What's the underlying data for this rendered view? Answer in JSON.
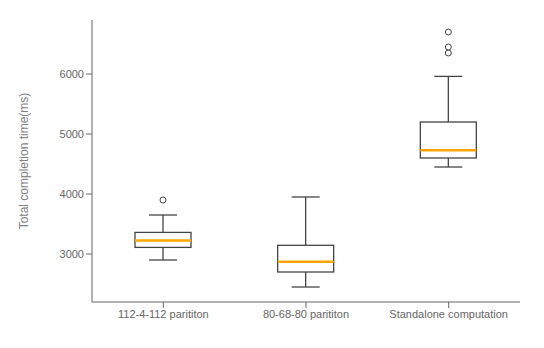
{
  "chart_data": {
    "type": "box",
    "ylabel": "Total completion time(ms)",
    "categories": [
      "112-4-112 parititon",
      "80-68-80 parititon",
      "Standalone computation"
    ],
    "q1": [
      3110,
      2700,
      4600
    ],
    "median": [
      3225,
      2870,
      4730
    ],
    "q3": [
      3360,
      3145,
      5200
    ],
    "whisker_low": [
      2900,
      2450,
      4450
    ],
    "whisker_high": [
      3650,
      3950,
      5960
    ],
    "fliers": [
      [
        3900
      ],
      [],
      [
        6350,
        6450,
        6700
      ]
    ],
    "color": "#FFA500",
    "ylim": [
      2200,
      6900
    ],
    "yticks": [
      3000,
      4000,
      5000,
      6000
    ],
    "grid": false
  }
}
